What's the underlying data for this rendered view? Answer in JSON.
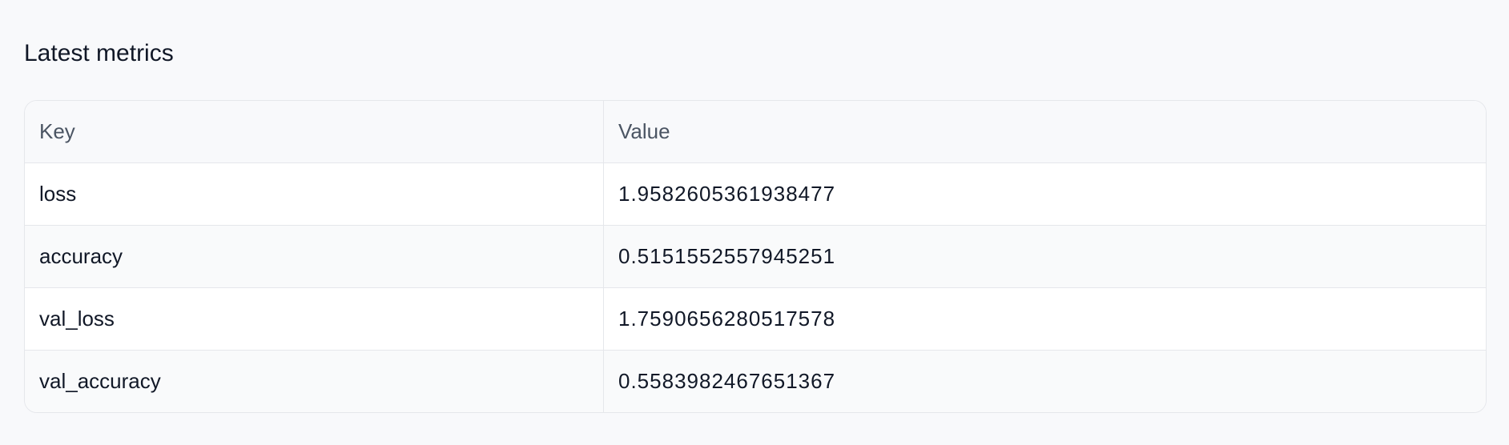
{
  "section": {
    "title": "Latest metrics"
  },
  "table": {
    "headers": [
      "Key",
      "Value"
    ],
    "rows": [
      {
        "key": "loss",
        "value": "1.9582605361938477"
      },
      {
        "key": "accuracy",
        "value": "0.5151552557945251"
      },
      {
        "key": "val_loss",
        "value": "1.7590656280517578"
      },
      {
        "key": "val_accuracy",
        "value": "0.5583982467651367"
      }
    ]
  }
}
